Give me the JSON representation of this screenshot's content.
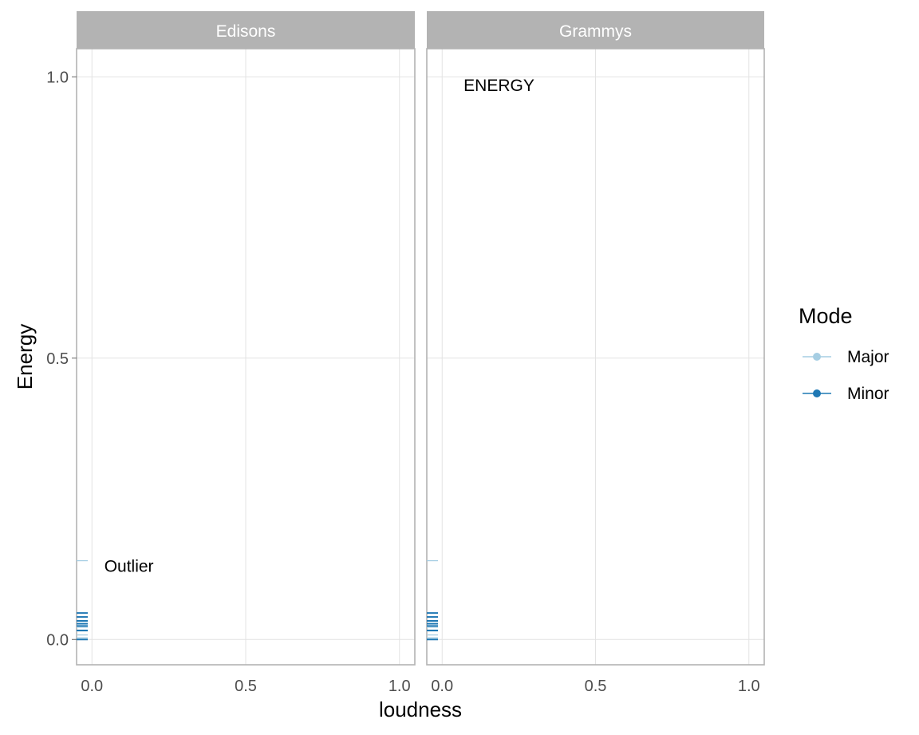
{
  "chart_data": {
    "type": "scatter",
    "xlabel": "loudness",
    "ylabel": "Energy",
    "xlim": [
      -0.05,
      1.05
    ],
    "ylim": [
      -0.045,
      1.05
    ],
    "x_ticks": [
      0.0,
      0.5,
      1.0
    ],
    "y_ticks": [
      0.0,
      0.5,
      1.0
    ],
    "x_tick_labels": [
      "0.0",
      "0.5",
      "1.0"
    ],
    "y_tick_labels": [
      "0.0",
      "0.5",
      "1.0"
    ],
    "grid": true,
    "legend": {
      "title": "Mode",
      "placement": "right",
      "entries": [
        {
          "label": "Major",
          "color": "#a6cee3"
        },
        {
          "label": "Minor",
          "color": "#1f78b4"
        }
      ]
    },
    "panels": [
      {
        "name": "Edisons",
        "annotation": {
          "text": "Outlier",
          "x": 0.04,
          "y": 0.13
        },
        "series": [
          {
            "name": "Major",
            "color": "#a6cee3",
            "values": [
              0.14,
              0.022,
              0.015,
              0.008,
              0.003
            ]
          },
          {
            "name": "Minor",
            "color": "#1f78b4",
            "values": [
              0.047,
              0.04,
              0.033,
              0.028,
              0.024,
              0.016,
              0.0
            ]
          }
        ]
      },
      {
        "name": "Grammys",
        "annotation": {
          "text": "ENERGY",
          "x": 0.07,
          "y": 0.985
        },
        "series": [
          {
            "name": "Major",
            "color": "#a6cee3",
            "values": [
              0.14,
              0.022,
              0.015,
              0.008,
              0.003
            ]
          },
          {
            "name": "Minor",
            "color": "#1f78b4",
            "values": [
              0.047,
              0.04,
              0.033,
              0.028,
              0.024,
              0.016,
              0.0
            ]
          }
        ]
      }
    ]
  }
}
